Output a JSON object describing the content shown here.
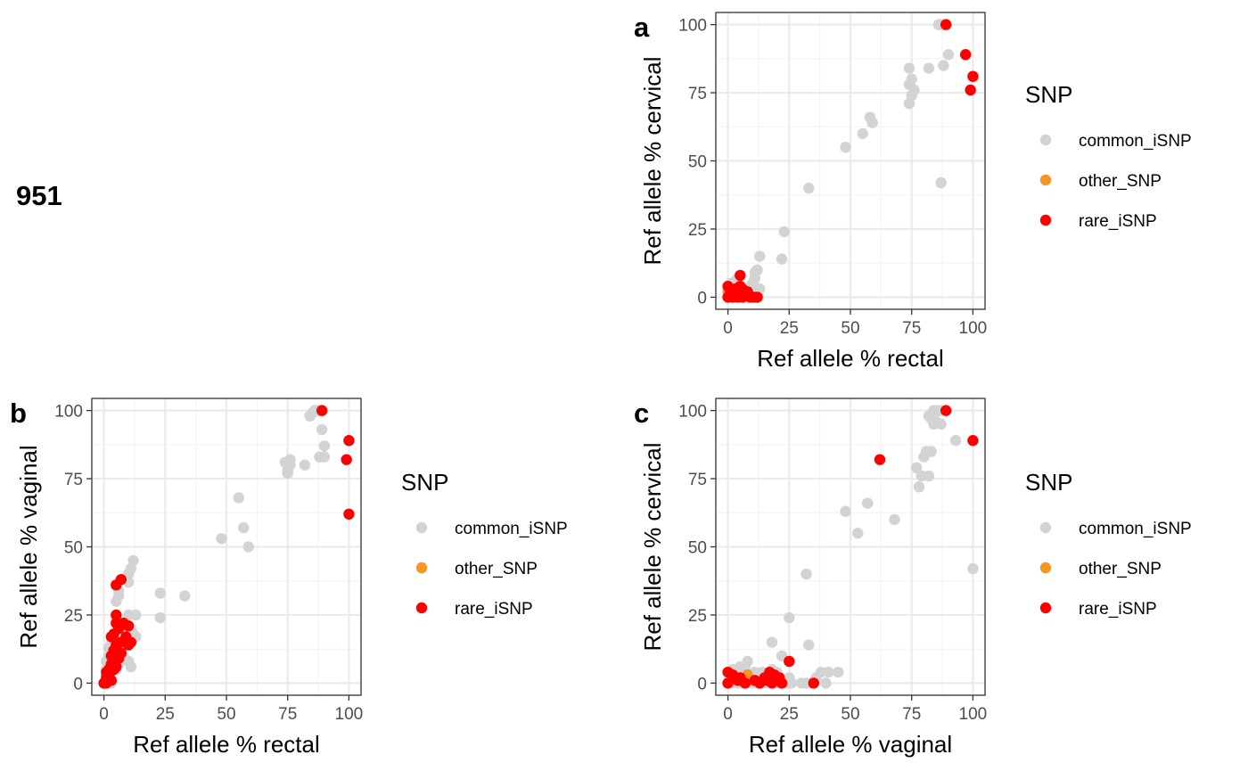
{
  "figure": {
    "id_label": "951"
  },
  "colors": {
    "common_iSNP": "#d3d3d3",
    "other_SNP": "#f5961e",
    "rare_iSNP": "#ff0000",
    "grid_major": "#ebebeb",
    "grid_minor": "#f4f4f4",
    "panel_border": "#333333"
  },
  "legend": {
    "title": "SNP",
    "entries": [
      "common_iSNP",
      "other_SNP",
      "rare_iSNP"
    ]
  },
  "chart_data": [
    {
      "panel": "a",
      "type": "scatter",
      "xlabel": "Ref allele % rectal",
      "ylabel": "Ref allele % cervical",
      "xlim": [
        0,
        100
      ],
      "ylim": [
        0,
        100
      ],
      "xticks": [
        0,
        25,
        50,
        75,
        100
      ],
      "yticks": [
        0,
        25,
        50,
        75,
        100
      ],
      "grid": true,
      "legend_position": "right",
      "series": [
        {
          "name": "common_iSNP",
          "points": [
            [
              86,
              100
            ],
            [
              87,
              100
            ],
            [
              88,
              100
            ],
            [
              89,
              100
            ],
            [
              90,
              89
            ],
            [
              88,
              85
            ],
            [
              82,
              84
            ],
            [
              74,
              84
            ],
            [
              75,
              80
            ],
            [
              74,
              78
            ],
            [
              76,
              76
            ],
            [
              75,
              74
            ],
            [
              74,
              71
            ],
            [
              87,
              42
            ],
            [
              58,
              66
            ],
            [
              59,
              64
            ],
            [
              55,
              60
            ],
            [
              48,
              55
            ],
            [
              33,
              40
            ],
            [
              23,
              24
            ],
            [
              22,
              14
            ],
            [
              13,
              15
            ],
            [
              12,
              10
            ],
            [
              11,
              9
            ],
            [
              11,
              7
            ],
            [
              10,
              5
            ],
            [
              4,
              7
            ],
            [
              3,
              6
            ],
            [
              2,
              5
            ],
            [
              1,
              5
            ],
            [
              2,
              3
            ],
            [
              4,
              3
            ],
            [
              6,
              3
            ],
            [
              8,
              3
            ],
            [
              9,
              4
            ],
            [
              11,
              3
            ],
            [
              12,
              3
            ],
            [
              13,
              3
            ],
            [
              1,
              1
            ],
            [
              2,
              1
            ],
            [
              3,
              1
            ],
            [
              5,
              1
            ],
            [
              7,
              1
            ],
            [
              9,
              1
            ],
            [
              10,
              1
            ],
            [
              12,
              1
            ],
            [
              0,
              0
            ],
            [
              1,
              0
            ],
            [
              2,
              0
            ],
            [
              3,
              0
            ],
            [
              5,
              0
            ],
            [
              6,
              0
            ],
            [
              7,
              0
            ],
            [
              9,
              0
            ],
            [
              10,
              0
            ],
            [
              11,
              0
            ]
          ]
        },
        {
          "name": "other_SNP",
          "points": [
            [
              1,
              3
            ],
            [
              0,
              2
            ]
          ]
        },
        {
          "name": "rare_iSNP",
          "points": [
            [
              89,
              100
            ],
            [
              97,
              89
            ],
            [
              100,
              81
            ],
            [
              99,
              76
            ],
            [
              5,
              8
            ],
            [
              0,
              4
            ],
            [
              1,
              2
            ],
            [
              3,
              3
            ],
            [
              5,
              4
            ],
            [
              6,
              3
            ],
            [
              7,
              1
            ],
            [
              8,
              2
            ],
            [
              9,
              0
            ],
            [
              10,
              0
            ],
            [
              11,
              0
            ],
            [
              12,
              0
            ],
            [
              4,
              0
            ],
            [
              0,
              0
            ],
            [
              2,
              0
            ],
            [
              6,
              0
            ]
          ]
        }
      ]
    },
    {
      "panel": "b",
      "type": "scatter",
      "xlabel": "Ref allele % rectal",
      "ylabel": "Ref allele % vaginal",
      "xlim": [
        0,
        100
      ],
      "ylim": [
        0,
        100
      ],
      "xticks": [
        0,
        25,
        50,
        75,
        100
      ],
      "yticks": [
        0,
        25,
        50,
        75,
        100
      ],
      "grid": true,
      "legend_position": "right",
      "series": [
        {
          "name": "common_iSNP",
          "points": [
            [
              84,
              98
            ],
            [
              85,
              99
            ],
            [
              86,
              100
            ],
            [
              87,
              100
            ],
            [
              88,
              100
            ],
            [
              89,
              93
            ],
            [
              90,
              87
            ],
            [
              90,
              83
            ],
            [
              88,
              83
            ],
            [
              76,
              82
            ],
            [
              74,
              81
            ],
            [
              76,
              80
            ],
            [
              75,
              78
            ],
            [
              75,
              77
            ],
            [
              82,
              80
            ],
            [
              55,
              68
            ],
            [
              57,
              57
            ],
            [
              59,
              50
            ],
            [
              48,
              53
            ],
            [
              33,
              32
            ],
            [
              23,
              33
            ],
            [
              23,
              24
            ],
            [
              12,
              45
            ],
            [
              11,
              42
            ],
            [
              10,
              40
            ],
            [
              10,
              37
            ],
            [
              6,
              34
            ],
            [
              6,
              32
            ],
            [
              5,
              30
            ],
            [
              13,
              25
            ],
            [
              10,
              25
            ],
            [
              11,
              20
            ],
            [
              12,
              18
            ],
            [
              13,
              17
            ],
            [
              11,
              16
            ],
            [
              10,
              8
            ],
            [
              11,
              6
            ],
            [
              4,
              15
            ],
            [
              3,
              14
            ],
            [
              2,
              13
            ],
            [
              2,
              10
            ],
            [
              1,
              8
            ],
            [
              3,
              9
            ],
            [
              4,
              11
            ],
            [
              1,
              5
            ],
            [
              1,
              3
            ],
            [
              2,
              2
            ],
            [
              3,
              4
            ],
            [
              5,
              5
            ],
            [
              6,
              7
            ],
            [
              7,
              9
            ],
            [
              8,
              10
            ],
            [
              2,
              7
            ],
            [
              1,
              1
            ],
            [
              0,
              0
            ],
            [
              1,
              0
            ],
            [
              3,
              0
            ],
            [
              4,
              6
            ]
          ]
        },
        {
          "name": "other_SNP",
          "points": [
            [
              2,
              4
            ]
          ]
        },
        {
          "name": "rare_iSNP",
          "points": [
            [
              89,
              100
            ],
            [
              100,
              89
            ],
            [
              99,
              82
            ],
            [
              100,
              62
            ],
            [
              7,
              38
            ],
            [
              5,
              36
            ],
            [
              5,
              25
            ],
            [
              5,
              22
            ],
            [
              4,
              18
            ],
            [
              3,
              17
            ],
            [
              6,
              20
            ],
            [
              8,
              22
            ],
            [
              10,
              21
            ],
            [
              11,
              15
            ],
            [
              10,
              14
            ],
            [
              9,
              17
            ],
            [
              7,
              15
            ],
            [
              5,
              14
            ],
            [
              4,
              12
            ],
            [
              7,
              11
            ],
            [
              6,
              9
            ],
            [
              3,
              10
            ],
            [
              4,
              8
            ],
            [
              3,
              7
            ],
            [
              5,
              6
            ],
            [
              2,
              5
            ],
            [
              1,
              4
            ],
            [
              4,
              5
            ],
            [
              2,
              3
            ],
            [
              1,
              2
            ],
            [
              1,
              0
            ],
            [
              0,
              0
            ],
            [
              3,
              1
            ]
          ]
        }
      ]
    },
    {
      "panel": "c",
      "type": "scatter",
      "xlabel": "Ref allele % vaginal",
      "ylabel": "Ref allele % cervical",
      "xlim": [
        0,
        100
      ],
      "ylim": [
        0,
        100
      ],
      "xticks": [
        0,
        25,
        50,
        75,
        100
      ],
      "yticks": [
        0,
        25,
        50,
        75,
        100
      ],
      "grid": true,
      "legend_position": "right",
      "series": [
        {
          "name": "common_iSNP",
          "points": [
            [
              84,
              100
            ],
            [
              86,
              100
            ],
            [
              87,
              100
            ],
            [
              82,
              98
            ],
            [
              83,
              97
            ],
            [
              84,
              95
            ],
            [
              85,
              96
            ],
            [
              87,
              95
            ],
            [
              93,
              89
            ],
            [
              81,
              85
            ],
            [
              83,
              85
            ],
            [
              80,
              83
            ],
            [
              77,
              79
            ],
            [
              79,
              76
            ],
            [
              82,
              76
            ],
            [
              78,
              72
            ],
            [
              100,
              42
            ],
            [
              68,
              60
            ],
            [
              57,
              66
            ],
            [
              48,
              63
            ],
            [
              53,
              55
            ],
            [
              32,
              40
            ],
            [
              25,
              24
            ],
            [
              33,
              14
            ],
            [
              18,
              15
            ],
            [
              22,
              10
            ],
            [
              20,
              4
            ],
            [
              18,
              5
            ],
            [
              11,
              4
            ],
            [
              14,
              4
            ],
            [
              8,
              8
            ],
            [
              7,
              6
            ],
            [
              2,
              5
            ],
            [
              5,
              6
            ],
            [
              38,
              4
            ],
            [
              41,
              4
            ],
            [
              45,
              4
            ],
            [
              40,
              0
            ],
            [
              30,
              0
            ],
            [
              32,
              0
            ],
            [
              34,
              0
            ],
            [
              24,
              0
            ],
            [
              26,
              0
            ],
            [
              21,
              0
            ],
            [
              19,
              0
            ],
            [
              16,
              0
            ],
            [
              14,
              0
            ],
            [
              12,
              0
            ],
            [
              10,
              0
            ],
            [
              8,
              0
            ],
            [
              6,
              0
            ],
            [
              4,
              0
            ],
            [
              2,
              0
            ],
            [
              0,
              0
            ],
            [
              11,
              2
            ],
            [
              13,
              2
            ],
            [
              15,
              2
            ],
            [
              17,
              1
            ],
            [
              9,
              1
            ],
            [
              3,
              2
            ],
            [
              25,
              2
            ],
            [
              36,
              2
            ]
          ]
        },
        {
          "name": "other_SNP",
          "points": [
            [
              8,
              3
            ],
            [
              9,
              1
            ]
          ]
        },
        {
          "name": "rare_iSNP",
          "points": [
            [
              89,
              100
            ],
            [
              100,
              89
            ],
            [
              62,
              82
            ],
            [
              25,
              8
            ],
            [
              0,
              4
            ],
            [
              2,
              3
            ],
            [
              5,
              2
            ],
            [
              15,
              2
            ],
            [
              17,
              4
            ],
            [
              19,
              3
            ],
            [
              21,
              2
            ],
            [
              22,
              0
            ],
            [
              18,
              0
            ],
            [
              7,
              0
            ],
            [
              13,
              0
            ],
            [
              35,
              0
            ],
            [
              0,
              0
            ],
            [
              4,
              1
            ],
            [
              11,
              1
            ],
            [
              16,
              1
            ]
          ]
        }
      ]
    }
  ]
}
